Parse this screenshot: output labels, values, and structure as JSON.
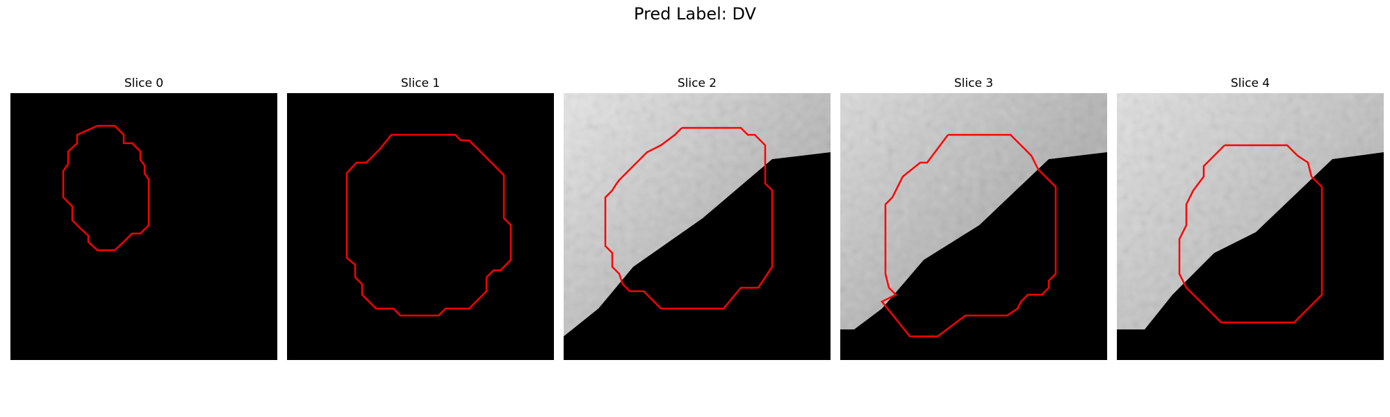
{
  "figure": {
    "title": "Pred Label: DV"
  },
  "colors": {
    "background": "#000000",
    "contour": "#ff0000"
  },
  "panels": [
    {
      "title": "Slice 0",
      "tissue": "none"
    },
    {
      "title": "Slice 1",
      "tissue": "none"
    },
    {
      "title": "Slice 2",
      "tissue": "grayscale-upper-left"
    },
    {
      "title": "Slice 3",
      "tissue": "grayscale-upper-left"
    },
    {
      "title": "Slice 4",
      "tissue": "grayscale-upper-left"
    }
  ]
}
